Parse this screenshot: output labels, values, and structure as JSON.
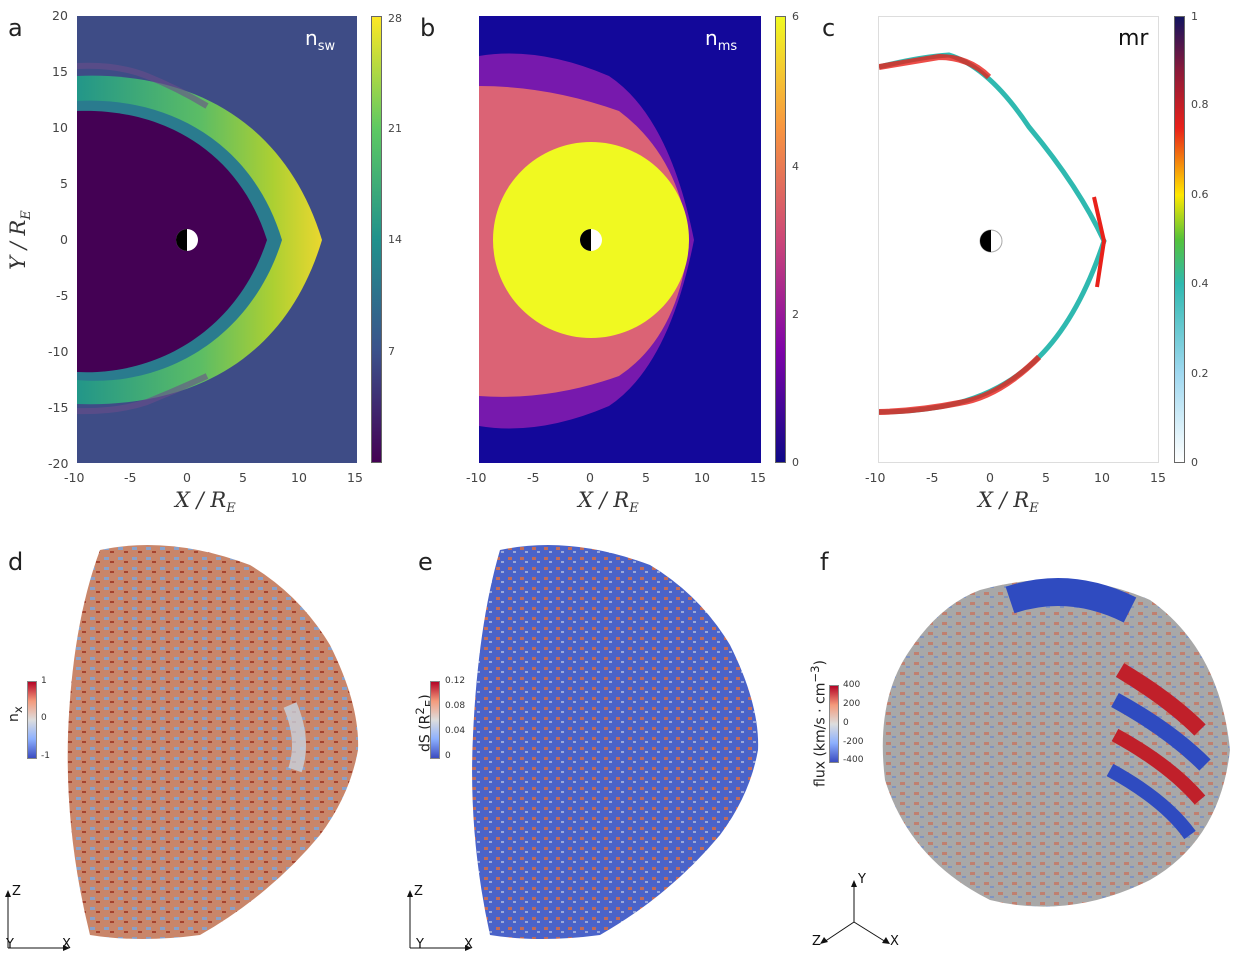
{
  "panels": {
    "a": {
      "letter": "a",
      "quantity": "n",
      "quantity_sub": "sw",
      "colorbar_ticks": [
        "28",
        "21",
        "14",
        "7"
      ],
      "colormap": [
        "#440154",
        "#3b528b",
        "#21918c",
        "#5ec962",
        "#fde725"
      ]
    },
    "b": {
      "letter": "b",
      "quantity": "n",
      "quantity_sub": "ms",
      "colorbar_ticks": [
        "6",
        "4",
        "2",
        "0"
      ],
      "colormap": [
        "#0d0887",
        "#7e03a8",
        "#cc4778",
        "#f89540",
        "#f0f921"
      ]
    },
    "c": {
      "letter": "c",
      "quantity": "mr",
      "colorbar_ticks": [
        "1",
        "0.8",
        "0.6",
        "0.4",
        "0.2",
        "0"
      ],
      "colormap": [
        "#ffffff",
        "#9fd8f0",
        "#2fb9b0",
        "#54c23a",
        "#ffe800",
        "#e8211a",
        "#8a1a3a",
        "#12135e"
      ]
    },
    "d": {
      "letter": "d",
      "label": "n",
      "label_sub": "x",
      "colorbar_ticks": [
        "1",
        "0",
        "-1"
      ]
    },
    "e": {
      "letter": "e",
      "label": "dS (R",
      "label_sup": "2",
      "label_sub": "E",
      "label_end": ")",
      "colorbar_ticks": [
        "0.12",
        "0.08",
        "0.04",
        "0"
      ]
    },
    "f": {
      "letter": "f",
      "label": "flux (km/s · cm",
      "label_sup": "−3",
      "label_end": ")",
      "colorbar_ticks": [
        "400",
        "200",
        "0",
        "-200",
        "-400"
      ]
    }
  },
  "axes": {
    "x_ticks": [
      "-10",
      "-5",
      "0",
      "5",
      "10",
      "15"
    ],
    "y_ticks": [
      "20",
      "15",
      "10",
      "5",
      "0",
      "-5",
      "-10",
      "-15",
      "-20"
    ],
    "x_label": "X",
    "y_label": "Y",
    "label_sep": " / ",
    "label_R": "R",
    "label_R_sub": "E"
  },
  "triads": {
    "d": [
      "Z",
      "Y",
      "X"
    ],
    "e": [
      "Z",
      "Y",
      "X"
    ],
    "f": [
      "Y",
      "Z",
      "X"
    ]
  },
  "diverging_colormap": [
    "#3b4cc0",
    "#8db0fe",
    "#dddddd",
    "#f49a7b",
    "#b40426"
  ]
}
